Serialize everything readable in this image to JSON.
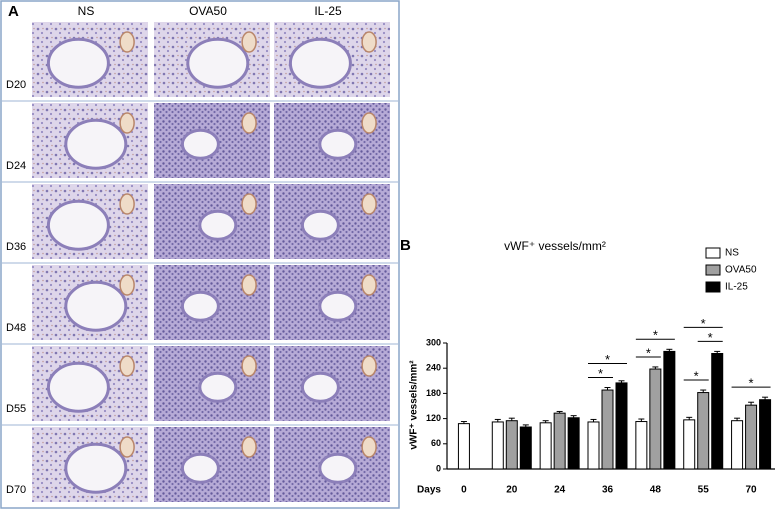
{
  "panel_a": {
    "label": "A",
    "columns": [
      "NS",
      "OVA50",
      "IL-25"
    ],
    "rows": [
      "D20",
      "D24",
      "D36",
      "D48",
      "D55",
      "D70"
    ]
  },
  "chart_data": {
    "type": "bar",
    "panel_label": "B",
    "title": "vWF⁺ vessels/mm²",
    "y_label": "vWF⁺ vessels/mm²",
    "x_label": "Days",
    "categories": [
      "0",
      "20",
      "24",
      "36",
      "48",
      "55",
      "70"
    ],
    "series": [
      {
        "name": "NS",
        "color": "#ffffff",
        "values": [
          108,
          112,
          110,
          112,
          113,
          117,
          115
        ],
        "errors": [
          5,
          6,
          5,
          6,
          6,
          6,
          6
        ]
      },
      {
        "name": "OVA50",
        "color": "#a0a0a0",
        "values": [
          null,
          115,
          133,
          188,
          238,
          182,
          152
        ],
        "errors": [
          null,
          6,
          4,
          6,
          5,
          6,
          7
        ]
      },
      {
        "name": "IL-25",
        "color": "#000000",
        "values": [
          null,
          100,
          122,
          205,
          280,
          275,
          165
        ],
        "errors": [
          null,
          5,
          5,
          5,
          5,
          5,
          6
        ]
      }
    ],
    "annotations": [
      {
        "text": "*",
        "category": "36",
        "between": [
          "NS",
          "OVA50"
        ]
      },
      {
        "text": "*",
        "category": "36",
        "between": [
          "NS",
          "IL-25"
        ]
      },
      {
        "text": "*",
        "category": "48",
        "between": [
          "NS",
          "OVA50"
        ]
      },
      {
        "text": "*",
        "category": "48",
        "between": [
          "NS",
          "IL-25"
        ]
      },
      {
        "text": "*",
        "category": "55",
        "between": [
          "NS",
          "OVA50"
        ]
      },
      {
        "text": "*",
        "category": "55",
        "between": [
          "OVA50",
          "IL-25"
        ]
      },
      {
        "text": "*",
        "category": "55",
        "between": [
          "NS",
          "IL-25"
        ]
      },
      {
        "text": "*",
        "category": "70",
        "between": [
          "NS",
          "IL-25"
        ]
      }
    ],
    "ylim": [
      0,
      300
    ],
    "yticks": [
      0,
      60,
      120,
      180,
      240,
      300
    ],
    "legend": "top-right"
  }
}
